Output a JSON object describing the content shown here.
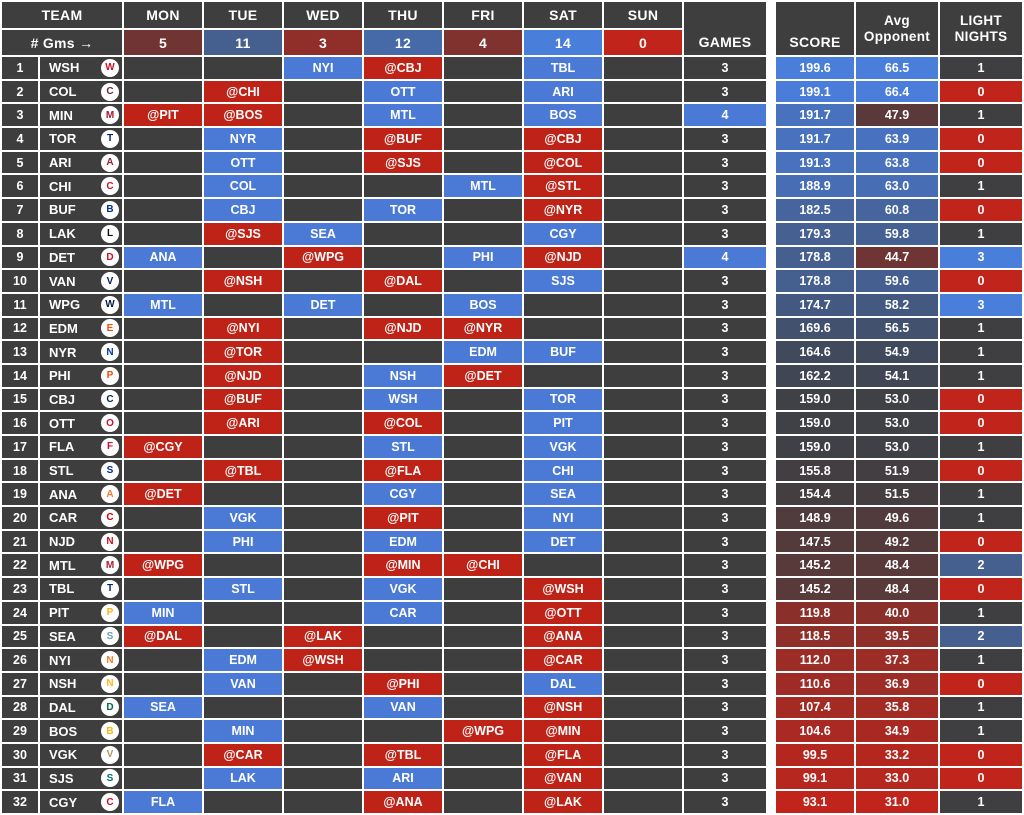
{
  "header": {
    "team": "TEAM",
    "gms": "# Gms →",
    "days": [
      {
        "name": "MON",
        "count": "5"
      },
      {
        "name": "TUE",
        "count": "11"
      },
      {
        "name": "WED",
        "count": "3"
      },
      {
        "name": "THU",
        "count": "12"
      },
      {
        "name": "FRI",
        "count": "4"
      },
      {
        "name": "SAT",
        "count": "14"
      },
      {
        "name": "SUN",
        "count": "0"
      }
    ],
    "games": "GAMES",
    "score": "SCORE",
    "avg_opponent": "Avg\nOpponent",
    "light_nights": "LIGHT\nNIGHTS"
  },
  "colors": {
    "page_bg": "#ffffff",
    "cell_bg": "#3e3e3e",
    "text": "#ffffff",
    "neutral": "#3f3f42",
    "blue": "#4a7edb",
    "red": "#c1241b",
    "home": "#4a7ad6",
    "away": "#bf2318",
    "logo_bg": "#ffffff"
  },
  "scales": {
    "day_count": {
      "min": 0,
      "mid": 8,
      "max": 14
    },
    "score": {
      "min": 93.1,
      "mid": 157.5,
      "max": 199.6
    },
    "avg_opponent": {
      "min": 31.0,
      "mid": 52.5,
      "max": 66.5
    },
    "light_nights": {
      "min": 0,
      "mid": 1,
      "max": 3
    }
  },
  "rows": [
    {
      "rank": "1",
      "team": "WSH",
      "logo": "#c8102e",
      "mon": "",
      "tue": "",
      "wed": "NYI",
      "thu": "@CBJ",
      "fri": "",
      "sat": "TBL",
      "sun": "",
      "games": "3",
      "score": "199.6",
      "avg_opponent": "66.5",
      "light_nights": "1"
    },
    {
      "rank": "2",
      "team": "COL",
      "logo": "#6f263d",
      "mon": "",
      "tue": "@CHI",
      "wed": "",
      "thu": "OTT",
      "fri": "",
      "sat": "ARI",
      "sun": "",
      "games": "3",
      "score": "199.1",
      "avg_opponent": "66.4",
      "light_nights": "0"
    },
    {
      "rank": "3",
      "team": "MIN",
      "logo": "#a6192e",
      "mon": "@PIT",
      "tue": "@BOS",
      "wed": "",
      "thu": "MTL",
      "fri": "",
      "sat": "BOS",
      "sun": "",
      "games": "4",
      "score": "191.7",
      "avg_opponent": "47.9",
      "light_nights": "1"
    },
    {
      "rank": "4",
      "team": "TOR",
      "logo": "#00205b",
      "mon": "",
      "tue": "NYR",
      "wed": "",
      "thu": "@BUF",
      "fri": "",
      "sat": "@CBJ",
      "sun": "",
      "games": "3",
      "score": "191.7",
      "avg_opponent": "63.9",
      "light_nights": "0"
    },
    {
      "rank": "5",
      "team": "ARI",
      "logo": "#8c2633",
      "mon": "",
      "tue": "OTT",
      "wed": "",
      "thu": "@SJS",
      "fri": "",
      "sat": "@COL",
      "sun": "",
      "games": "3",
      "score": "191.3",
      "avg_opponent": "63.8",
      "light_nights": "0"
    },
    {
      "rank": "6",
      "team": "CHI",
      "logo": "#ce1126",
      "mon": "",
      "tue": "COL",
      "wed": "",
      "thu": "",
      "fri": "MTL",
      "sat": "@STL",
      "sun": "",
      "games": "3",
      "score": "188.9",
      "avg_opponent": "63.0",
      "light_nights": "1"
    },
    {
      "rank": "7",
      "team": "BUF",
      "logo": "#003087",
      "mon": "",
      "tue": "CBJ",
      "wed": "",
      "thu": "TOR",
      "fri": "",
      "sat": "@NYR",
      "sun": "",
      "games": "3",
      "score": "182.5",
      "avg_opponent": "60.8",
      "light_nights": "0"
    },
    {
      "rank": "8",
      "team": "LAK",
      "logo": "#111111",
      "mon": "",
      "tue": "@SJS",
      "wed": "SEA",
      "thu": "",
      "fri": "",
      "sat": "CGY",
      "sun": "",
      "games": "3",
      "score": "179.3",
      "avg_opponent": "59.8",
      "light_nights": "1"
    },
    {
      "rank": "9",
      "team": "DET",
      "logo": "#ce1126",
      "mon": "ANA",
      "tue": "",
      "wed": "@WPG",
      "thu": "",
      "fri": "PHI",
      "sat": "@NJD",
      "sun": "",
      "games": "4",
      "score": "178.8",
      "avg_opponent": "44.7",
      "light_nights": "3"
    },
    {
      "rank": "10",
      "team": "VAN",
      "logo": "#00205b",
      "mon": "",
      "tue": "@NSH",
      "wed": "",
      "thu": "@DAL",
      "fri": "",
      "sat": "SJS",
      "sun": "",
      "games": "3",
      "score": "178.8",
      "avg_opponent": "59.6",
      "light_nights": "0"
    },
    {
      "rank": "11",
      "team": "WPG",
      "logo": "#041e42",
      "mon": "MTL",
      "tue": "",
      "wed": "DET",
      "thu": "",
      "fri": "BOS",
      "sat": "",
      "sun": "",
      "games": "3",
      "score": "174.7",
      "avg_opponent": "58.2",
      "light_nights": "3"
    },
    {
      "rank": "12",
      "team": "EDM",
      "logo": "#fc4c02",
      "mon": "",
      "tue": "@NYI",
      "wed": "",
      "thu": "@NJD",
      "fri": "@NYR",
      "sat": "",
      "sun": "",
      "games": "3",
      "score": "169.6",
      "avg_opponent": "56.5",
      "light_nights": "1"
    },
    {
      "rank": "13",
      "team": "NYR",
      "logo": "#0038a8",
      "mon": "",
      "tue": "@TOR",
      "wed": "",
      "thu": "",
      "fri": "EDM",
      "sat": "BUF",
      "sun": "",
      "games": "3",
      "score": "164.6",
      "avg_opponent": "54.9",
      "light_nights": "1"
    },
    {
      "rank": "14",
      "team": "PHI",
      "logo": "#f74902",
      "mon": "",
      "tue": "@NJD",
      "wed": "",
      "thu": "NSH",
      "fri": "@DET",
      "sat": "",
      "sun": "",
      "games": "3",
      "score": "162.2",
      "avg_opponent": "54.1",
      "light_nights": "1"
    },
    {
      "rank": "15",
      "team": "CBJ",
      "logo": "#002654",
      "mon": "",
      "tue": "@BUF",
      "wed": "",
      "thu": "WSH",
      "fri": "",
      "sat": "TOR",
      "sun": "",
      "games": "3",
      "score": "159.0",
      "avg_opponent": "53.0",
      "light_nights": "0"
    },
    {
      "rank": "16",
      "team": "OTT",
      "logo": "#c8102e",
      "mon": "",
      "tue": "@ARI",
      "wed": "",
      "thu": "@COL",
      "fri": "",
      "sat": "PIT",
      "sun": "",
      "games": "3",
      "score": "159.0",
      "avg_opponent": "53.0",
      "light_nights": "0"
    },
    {
      "rank": "17",
      "team": "FLA",
      "logo": "#c8102e",
      "mon": "@CGY",
      "tue": "",
      "wed": "",
      "thu": "STL",
      "fri": "",
      "sat": "VGK",
      "sun": "",
      "games": "3",
      "score": "159.0",
      "avg_opponent": "53.0",
      "light_nights": "1"
    },
    {
      "rank": "18",
      "team": "STL",
      "logo": "#002f87",
      "mon": "",
      "tue": "@TBL",
      "wed": "",
      "thu": "@FLA",
      "fri": "",
      "sat": "CHI",
      "sun": "",
      "games": "3",
      "score": "155.8",
      "avg_opponent": "51.9",
      "light_nights": "0"
    },
    {
      "rank": "19",
      "team": "ANA",
      "logo": "#f47a38",
      "mon": "@DET",
      "tue": "",
      "wed": "",
      "thu": "CGY",
      "fri": "",
      "sat": "SEA",
      "sun": "",
      "games": "3",
      "score": "154.4",
      "avg_opponent": "51.5",
      "light_nights": "1"
    },
    {
      "rank": "20",
      "team": "CAR",
      "logo": "#cc0000",
      "mon": "",
      "tue": "VGK",
      "wed": "",
      "thu": "@PIT",
      "fri": "",
      "sat": "NYI",
      "sun": "",
      "games": "3",
      "score": "148.9",
      "avg_opponent": "49.6",
      "light_nights": "1"
    },
    {
      "rank": "21",
      "team": "NJD",
      "logo": "#ce1126",
      "mon": "",
      "tue": "PHI",
      "wed": "",
      "thu": "EDM",
      "fri": "",
      "sat": "DET",
      "sun": "",
      "games": "3",
      "score": "147.5",
      "avg_opponent": "49.2",
      "light_nights": "0"
    },
    {
      "rank": "22",
      "team": "MTL",
      "logo": "#af1e2d",
      "mon": "@WPG",
      "tue": "",
      "wed": "",
      "thu": "@MIN",
      "fri": "@CHI",
      "sat": "",
      "sun": "",
      "games": "3",
      "score": "145.2",
      "avg_opponent": "48.4",
      "light_nights": "2"
    },
    {
      "rank": "23",
      "team": "TBL",
      "logo": "#00286b",
      "mon": "",
      "tue": "STL",
      "wed": "",
      "thu": "VGK",
      "fri": "",
      "sat": "@WSH",
      "sun": "",
      "games": "3",
      "score": "145.2",
      "avg_opponent": "48.4",
      "light_nights": "0"
    },
    {
      "rank": "24",
      "team": "PIT",
      "logo": "#fcb514",
      "mon": "MIN",
      "tue": "",
      "wed": "",
      "thu": "CAR",
      "fri": "",
      "sat": "@OTT",
      "sun": "",
      "games": "3",
      "score": "119.8",
      "avg_opponent": "40.0",
      "light_nights": "1"
    },
    {
      "rank": "25",
      "team": "SEA",
      "logo": "#68a2b9",
      "mon": "@DAL",
      "tue": "",
      "wed": "@LAK",
      "thu": "",
      "fri": "",
      "sat": "@ANA",
      "sun": "",
      "games": "3",
      "score": "118.5",
      "avg_opponent": "39.5",
      "light_nights": "2"
    },
    {
      "rank": "26",
      "team": "NYI",
      "logo": "#f47d30",
      "mon": "",
      "tue": "EDM",
      "wed": "@WSH",
      "thu": "",
      "fri": "",
      "sat": "@CAR",
      "sun": "",
      "games": "3",
      "score": "112.0",
      "avg_opponent": "37.3",
      "light_nights": "1"
    },
    {
      "rank": "27",
      "team": "NSH",
      "logo": "#ffb81c",
      "mon": "",
      "tue": "VAN",
      "wed": "",
      "thu": "@PHI",
      "fri": "",
      "sat": "DAL",
      "sun": "",
      "games": "3",
      "score": "110.6",
      "avg_opponent": "36.9",
      "light_nights": "0"
    },
    {
      "rank": "28",
      "team": "DAL",
      "logo": "#006847",
      "mon": "SEA",
      "tue": "",
      "wed": "",
      "thu": "VAN",
      "fri": "",
      "sat": "@NSH",
      "sun": "",
      "games": "3",
      "score": "107.4",
      "avg_opponent": "35.8",
      "light_nights": "1"
    },
    {
      "rank": "29",
      "team": "BOS",
      "logo": "#fcb514",
      "mon": "",
      "tue": "MIN",
      "wed": "",
      "thu": "",
      "fri": "@WPG",
      "sat": "@MIN",
      "sun": "",
      "games": "3",
      "score": "104.6",
      "avg_opponent": "34.9",
      "light_nights": "1"
    },
    {
      "rank": "30",
      "team": "VGK",
      "logo": "#b4975a",
      "mon": "",
      "tue": "@CAR",
      "wed": "",
      "thu": "@TBL",
      "fri": "",
      "sat": "@FLA",
      "sun": "",
      "games": "3",
      "score": "99.5",
      "avg_opponent": "33.2",
      "light_nights": "0"
    },
    {
      "rank": "31",
      "team": "SJS",
      "logo": "#006d75",
      "mon": "",
      "tue": "LAK",
      "wed": "",
      "thu": "ARI",
      "fri": "",
      "sat": "@VAN",
      "sun": "",
      "games": "3",
      "score": "99.1",
      "avg_opponent": "33.0",
      "light_nights": "0"
    },
    {
      "rank": "32",
      "team": "CGY",
      "logo": "#c8102e",
      "mon": "FLA",
      "tue": "",
      "wed": "",
      "thu": "@ANA",
      "fri": "",
      "sat": "@LAK",
      "sun": "",
      "games": "3",
      "score": "93.1",
      "avg_opponent": "31.0",
      "light_nights": "1"
    }
  ]
}
